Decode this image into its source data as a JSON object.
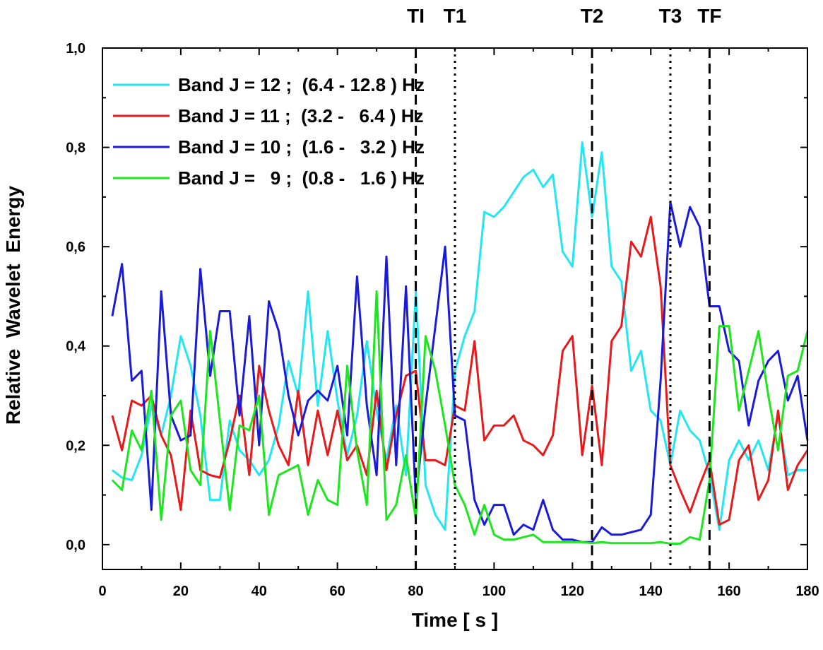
{
  "chart_data": {
    "type": "line",
    "xlabel": "Time [ s ]",
    "ylabel": "Relative  Wavelet  Energy",
    "xlim": [
      0,
      180
    ],
    "ylim": [
      -0.05,
      1.0
    ],
    "x_ticks": [
      0,
      20,
      40,
      60,
      80,
      100,
      120,
      140,
      160,
      180
    ],
    "x_tick_labels": [
      "0",
      "20",
      "40",
      "60",
      "80",
      "100",
      "120",
      "140",
      "160",
      "180"
    ],
    "y_ticks": [
      0.0,
      0.2,
      0.4,
      0.6,
      0.8,
      1.0
    ],
    "y_tick_labels": [
      "0,0",
      "0,2",
      "0,4",
      "0,6",
      "0,8",
      "1,0"
    ],
    "legend_position": "top-left",
    "x": [
      2.5,
      5,
      7.5,
      10,
      12.5,
      15,
      17.5,
      20,
      22.5,
      25,
      27.5,
      30,
      32.5,
      35,
      37.5,
      40,
      42.5,
      45,
      47.5,
      50,
      52.5,
      55,
      57.5,
      60,
      62.5,
      65,
      67.5,
      70,
      72.5,
      75,
      77.5,
      80,
      82.5,
      85,
      87.5,
      90,
      92.5,
      95,
      97.5,
      100,
      102.5,
      105,
      107.5,
      110,
      112.5,
      115,
      117.5,
      120,
      122.5,
      125,
      127.5,
      130,
      132.5,
      135,
      137.5,
      140,
      142.5,
      145,
      147.5,
      150,
      152.5,
      155,
      157.5,
      160,
      162.5,
      165,
      167.5,
      170,
      172.5,
      175,
      177.5,
      180
    ],
    "series": [
      {
        "name": "Band J = 12 ;  (6.4 - 12.8 ) Hz",
        "color": "#22e6f2",
        "values": [
          0.15,
          0.135,
          0.13,
          0.18,
          0.28,
          0.22,
          0.3,
          0.42,
          0.36,
          0.26,
          0.09,
          0.09,
          0.25,
          0.19,
          0.17,
          0.14,
          0.17,
          0.24,
          0.37,
          0.3,
          0.51,
          0.28,
          0.43,
          0.29,
          0.18,
          0.26,
          0.41,
          0.27,
          0.17,
          0.28,
          0.14,
          0.51,
          0.12,
          0.06,
          0.03,
          0.35,
          0.42,
          0.47,
          0.67,
          0.66,
          0.68,
          0.71,
          0.74,
          0.755,
          0.72,
          0.745,
          0.59,
          0.56,
          0.81,
          0.66,
          0.79,
          0.56,
          0.53,
          0.35,
          0.39,
          0.27,
          0.25,
          0.16,
          0.27,
          0.23,
          0.21,
          0.14,
          0.03,
          0.17,
          0.21,
          0.17,
          0.21,
          0.15,
          0.26,
          0.14,
          0.15,
          0.15
        ]
      },
      {
        "name": "Band J = 11 ;  (3.2 -   6.4 ) Hz",
        "color": "#e8191b",
        "values": [
          0.26,
          0.19,
          0.29,
          0.28,
          0.3,
          0.22,
          0.18,
          0.07,
          0.27,
          0.15,
          0.14,
          0.135,
          0.21,
          0.3,
          0.14,
          0.36,
          0.27,
          0.2,
          0.16,
          0.31,
          0.16,
          0.27,
          0.18,
          0.27,
          0.17,
          0.2,
          0.14,
          0.31,
          0.15,
          0.26,
          0.34,
          0.35,
          0.17,
          0.17,
          0.16,
          0.28,
          0.27,
          0.41,
          0.21,
          0.24,
          0.24,
          0.26,
          0.21,
          0.2,
          0.18,
          0.22,
          0.39,
          0.42,
          0.18,
          0.32,
          0.16,
          0.41,
          0.44,
          0.61,
          0.58,
          0.66,
          0.52,
          0.16,
          0.11,
          0.065,
          0.12,
          0.17,
          0.04,
          0.05,
          0.17,
          0.2,
          0.09,
          0.13,
          0.27,
          0.11,
          0.16,
          0.19
        ]
      },
      {
        "name": "Band J = 10 ;  (1.6 -   3.2 ) Hz",
        "color": "#1a1adb",
        "values": [
          0.46,
          0.565,
          0.33,
          0.35,
          0.07,
          0.51,
          0.26,
          0.21,
          0.22,
          0.555,
          0.34,
          0.47,
          0.47,
          0.26,
          0.46,
          0.2,
          0.49,
          0.43,
          0.3,
          0.22,
          0.29,
          0.31,
          0.29,
          0.36,
          0.22,
          0.54,
          0.28,
          0.14,
          0.58,
          0.16,
          0.52,
          0.09,
          0.28,
          0.44,
          0.6,
          0.26,
          0.25,
          0.09,
          0.04,
          0.08,
          0.08,
          0.02,
          0.04,
          0.03,
          0.09,
          0.03,
          0.01,
          0.01,
          0.005,
          0.005,
          0.035,
          0.02,
          0.02,
          0.025,
          0.03,
          0.06,
          0.33,
          0.69,
          0.6,
          0.68,
          0.64,
          0.48,
          0.48,
          0.39,
          0.37,
          0.24,
          0.33,
          0.37,
          0.39,
          0.29,
          0.34,
          0.21
        ]
      },
      {
        "name": "Band J =   9 ;  (0.8 -   1.6 ) Hz",
        "color": "#1ee61e",
        "values": [
          0.13,
          0.11,
          0.23,
          0.19,
          0.31,
          0.05,
          0.26,
          0.29,
          0.15,
          0.12,
          0.43,
          0.25,
          0.07,
          0.24,
          0.23,
          0.3,
          0.06,
          0.14,
          0.15,
          0.16,
          0.06,
          0.13,
          0.09,
          0.08,
          0.36,
          0.19,
          0.08,
          0.51,
          0.05,
          0.08,
          0.18,
          0.05,
          0.42,
          0.35,
          0.24,
          0.12,
          0.08,
          0.02,
          0.08,
          0.02,
          0.01,
          0.01,
          0.015,
          0.02,
          0.005,
          0.005,
          0.005,
          0.005,
          0.005,
          0.003,
          0.005,
          0.003,
          0.003,
          0.003,
          0.003,
          0.003,
          0.005,
          0.002,
          0.002,
          0.015,
          0.01,
          0.13,
          0.44,
          0.44,
          0.27,
          0.35,
          0.43,
          0.3,
          0.19,
          0.34,
          0.35,
          0.43
        ]
      }
    ],
    "event_markers": [
      {
        "label": "TI",
        "x": 80,
        "style": "dashed"
      },
      {
        "label": "T1",
        "x": 90,
        "style": "dotted"
      },
      {
        "label": "T2",
        "x": 125,
        "style": "dashed"
      },
      {
        "label": "T3",
        "x": 145,
        "style": "dotted"
      },
      {
        "label": "TF",
        "x": 155,
        "style": "dashed"
      }
    ]
  }
}
